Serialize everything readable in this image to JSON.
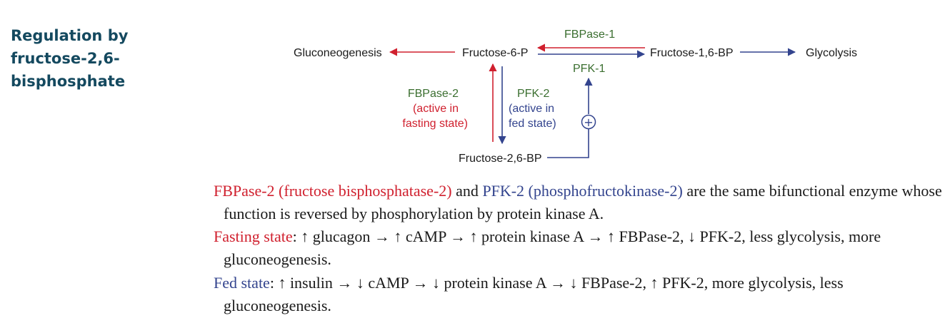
{
  "heading": "Regulation by\nfructose-2,6-\nbisphosphate",
  "diagram": {
    "gluconeogenesis": "Gluconeogenesis",
    "f6p": "Fructose-6-P",
    "f16bp": "Fructose-1,6-BP",
    "glycolysis": "Glycolysis",
    "fbpase1": "FBPase-1",
    "pfk1": "PFK-1",
    "fbpase2_lines": [
      "FBPase-2",
      "(active in",
      "fasting state)"
    ],
    "pfk2_lines": [
      "PFK-2",
      "(active in",
      "fed state)"
    ],
    "f26bp": "Fructose-2,6-BP",
    "plus_symbol": "+",
    "colors": {
      "red": "#d0202e",
      "blue": "#33448e",
      "green": "#3a6e2f",
      "heading": "#14495f"
    }
  },
  "text": {
    "p1": {
      "fbpase2": "FBPase-2 (fructose bisphosphatase-2)",
      "and": " and ",
      "pfk2": "PFK-2 (phosphofructokinase-2)",
      "rest": " are the same bifunctional enzyme whose function is reversed by phosphorylation by protein kinase A."
    },
    "p2": {
      "label": "Fasting state",
      "body": ": ↑ glucagon → ↑ cAMP → ↑ protein kinase A → ↑ FBPase-2, ↓ PFK-2, less glycolysis, more gluconeogenesis."
    },
    "p3": {
      "label": "Fed state",
      "body": ": ↑ insulin → ↓ cAMP → ↓ protein kinase A → ↓ FBPase-2, ↑ PFK-2, more glycolysis, less gluconeogenesis."
    }
  }
}
